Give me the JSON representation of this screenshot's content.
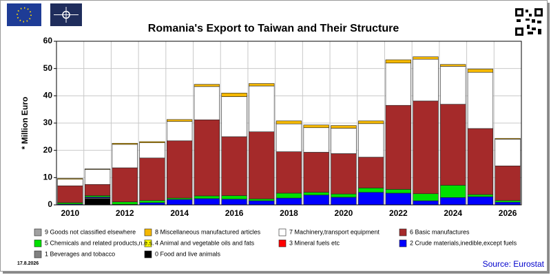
{
  "chart_data": {
    "type": "stacked_bar",
    "title": "Romania's Export to Taiwan and Their Structure",
    "ylabel": "* Million Euro",
    "date": "17.8.2026",
    "source": "Source: Eurostat",
    "categories": [
      "2010",
      null,
      "2012",
      null,
      "2014",
      null,
      "2016",
      null,
      "2018",
      null,
      "2020",
      null,
      "2022",
      null,
      "2024",
      null,
      "2026"
    ],
    "ylim": [
      0,
      60
    ],
    "yticks": [
      0,
      10,
      20,
      30,
      40,
      50,
      60
    ],
    "grid": true,
    "series": [
      {
        "name": "0 Food and live animals",
        "color": "#000000",
        "values": [
          0,
          2.3,
          0,
          0,
          0,
          0,
          0,
          0,
          0,
          0,
          0,
          0,
          0,
          0,
          0,
          0,
          0
        ]
      },
      {
        "name": "1 Beverages and tobacco",
        "color": "#808080",
        "values": [
          0,
          0.3,
          0,
          0,
          0,
          0,
          0,
          0,
          0,
          0,
          0,
          0,
          0,
          0,
          0,
          0,
          0
        ]
      },
      {
        "name": "2 Crude materials,inedible,except fuels",
        "color": "#0000ff",
        "values": [
          0.3,
          0.3,
          0.2,
          0.8,
          2,
          2.3,
          2.1,
          1.5,
          2.5,
          3.6,
          2.8,
          4.6,
          4.3,
          1.5,
          2.7,
          3,
          1
        ]
      },
      {
        "name": "3 Mineral fuels etc",
        "color": "#ff0000",
        "values": [
          0,
          0,
          0,
          0,
          0,
          0,
          0,
          0,
          0,
          0,
          0,
          0,
          0,
          0,
          0,
          0,
          0
        ]
      },
      {
        "name": "4 Animal and vegetable oils and fats",
        "color": "#ffff00",
        "values": [
          0,
          0,
          0,
          0,
          0,
          0,
          0,
          0,
          0,
          0,
          0,
          0,
          0,
          0,
          0,
          0,
          0
        ]
      },
      {
        "name": "5 Chemicals and related products,n.e.s.",
        "color": "#00e000",
        "values": [
          0.5,
          0.5,
          0.9,
          0.8,
          0.5,
          1,
          1.3,
          0.7,
          1.8,
          1,
          1.2,
          1.6,
          1.4,
          2.6,
          4.5,
          0.8,
          0.6
        ]
      },
      {
        "name": "6 Basic manufactures",
        "color": "#a52a2a",
        "values": [
          6.2,
          4.1,
          12.5,
          15.6,
          21,
          27.9,
          21.6,
          24.6,
          15.2,
          14.7,
          14.8,
          11.3,
          30.8,
          34,
          29.7,
          24.2,
          12.7
        ]
      },
      {
        "name": "7 Machinery,transport equipment",
        "color": "#ffffff",
        "values": [
          2.4,
          5.5,
          8.6,
          5.6,
          7.1,
          12.2,
          14.7,
          16.8,
          10.2,
          9,
          9.3,
          12.3,
          15.5,
          15.3,
          13.9,
          20.6,
          9.8
        ]
      },
      {
        "name": "8 Miscellaneous manufactured articles",
        "color": "#f5b800",
        "values": [
          0.3,
          0.2,
          0.4,
          0.4,
          0.7,
          0.8,
          1.3,
          0.9,
          1.1,
          1,
          1,
          1,
          1.2,
          0.9,
          0.7,
          1.2,
          0.3
        ]
      },
      {
        "name": "9 Goods not classified elsewhere",
        "color": "#a0a0a0",
        "values": [
          0,
          0,
          0,
          0,
          0,
          0,
          0,
          0,
          0,
          0,
          0,
          0,
          0,
          0,
          0,
          0,
          0
        ]
      }
    ]
  }
}
